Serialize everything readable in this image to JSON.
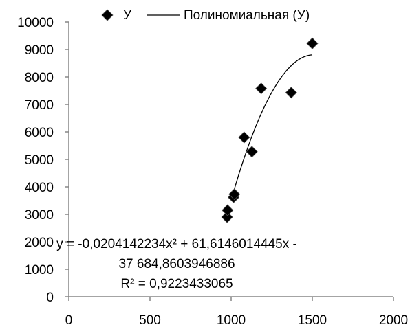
{
  "chart_data": {
    "type": "scatter",
    "title": "",
    "xlabel": "",
    "ylabel": "",
    "xlim": [
      0,
      2000
    ],
    "ylim": [
      0,
      10000
    ],
    "xticks": [
      0,
      500,
      1000,
      1500,
      2000
    ],
    "yticks": [
      0,
      1000,
      2000,
      3000,
      4000,
      5000,
      6000,
      7000,
      8000,
      9000,
      10000
    ],
    "grid": false,
    "legend_position": "top",
    "series": [
      {
        "name": "У",
        "marker": "diamond",
        "color": "#000000",
        "points": [
          {
            "x": 975,
            "y": 2900
          },
          {
            "x": 978,
            "y": 3150
          },
          {
            "x": 1015,
            "y": 3620
          },
          {
            "x": 1020,
            "y": 3730
          },
          {
            "x": 1080,
            "y": 5800
          },
          {
            "x": 1128,
            "y": 5280
          },
          {
            "x": 1185,
            "y": 7580
          },
          {
            "x": 1370,
            "y": 7430
          },
          {
            "x": 1500,
            "y": 9220
          }
        ]
      }
    ],
    "trendline": {
      "name": "Полиномиальная (У)",
      "type": "polynomial",
      "order": 2,
      "coefficients": [
        -0.0204142234,
        61.6146014445,
        -37684.8603946886
      ],
      "x_range": [
        1015,
        1500
      ],
      "color": "#000000",
      "equation_lines": [
        "y = -0,0204142234x² + 61,6146014445x -",
        "37 684,8603946886",
        "R² = 0,9223433065"
      ]
    }
  }
}
